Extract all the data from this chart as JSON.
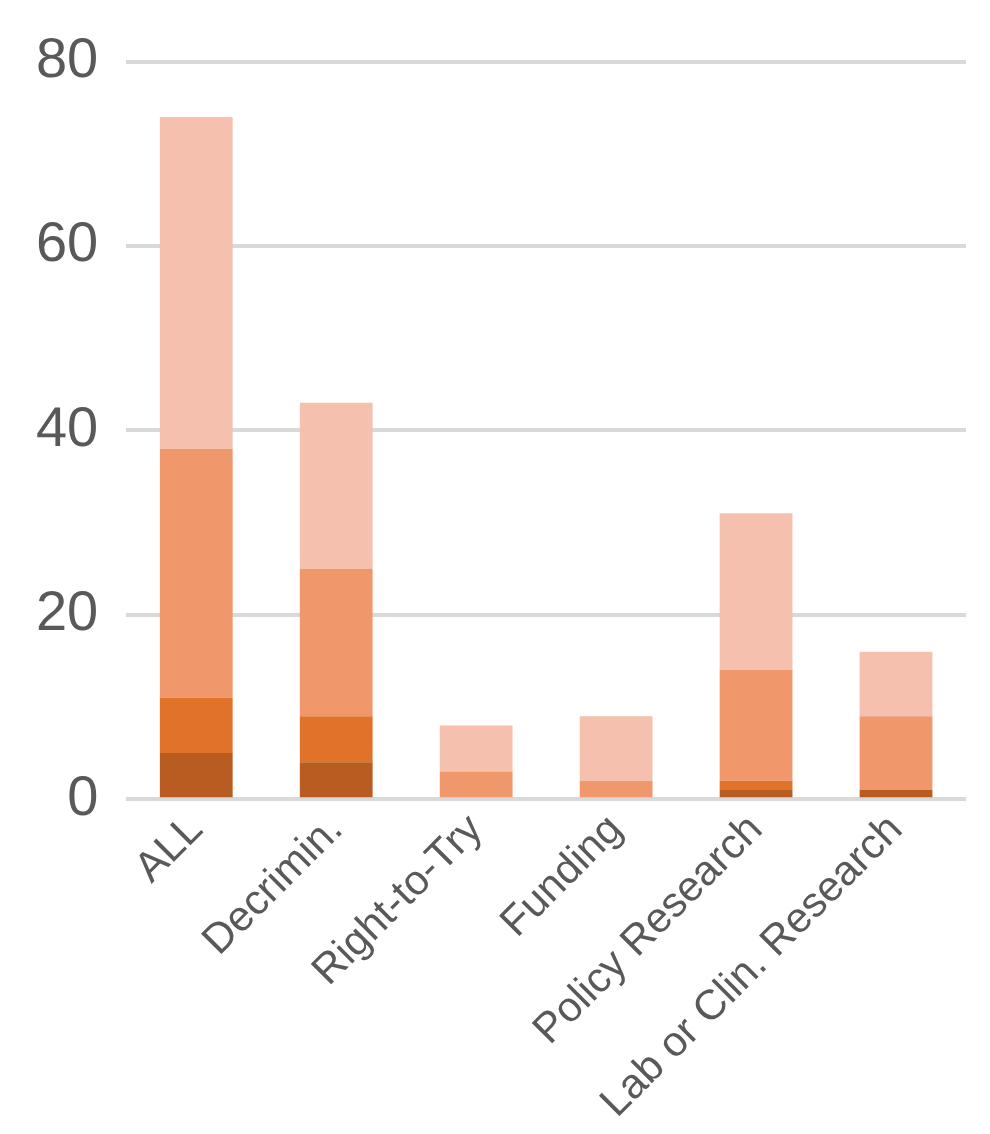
{
  "chart_data": {
    "type": "bar",
    "stacked": true,
    "categories": [
      "ALL",
      "Decrimin.",
      "Right-to-Try",
      "Funding",
      "Policy Research",
      "Lab or Clin. Research"
    ],
    "series": [
      {
        "color": "#b85c22",
        "values": [
          5,
          4,
          0,
          0,
          1,
          1
        ]
      },
      {
        "color": "#e0722a",
        "values": [
          6,
          5,
          0,
          0,
          1,
          0
        ]
      },
      {
        "color": "#f0976c",
        "values": [
          27,
          16,
          3,
          2,
          12,
          8
        ]
      },
      {
        "color": "#f5c0ad",
        "values": [
          36,
          18,
          5,
          7,
          17,
          7
        ]
      }
    ],
    "ylim": [
      0,
      80
    ],
    "yticks": [
      0,
      20,
      40,
      60,
      80
    ],
    "grid": "y",
    "legend": false
  }
}
